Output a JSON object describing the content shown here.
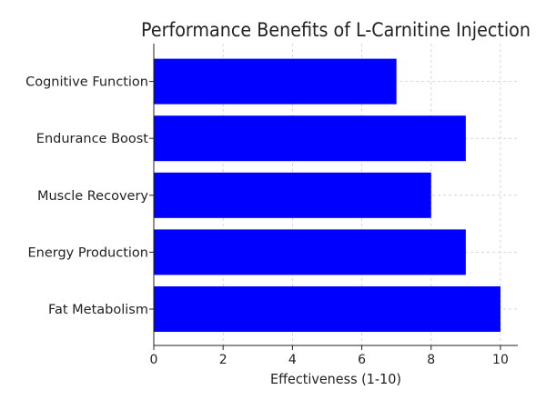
{
  "chart_data": {
    "type": "bar",
    "orientation": "horizontal",
    "title": "Performance Benefits of L-Carnitine Injection",
    "xlabel": "Effectiveness (1-10)",
    "ylabel": "",
    "categories": [
      "Fat Metabolism",
      "Energy Production",
      "Muscle Recovery",
      "Endurance Boost",
      "Cognitive Function"
    ],
    "values": [
      10,
      9,
      8,
      9,
      7
    ],
    "xlim": [
      0,
      10.5
    ],
    "xticks": [
      "0",
      "2",
      "4",
      "6",
      "8",
      "10"
    ],
    "grid": true,
    "bar_color": "#0000ff"
  }
}
